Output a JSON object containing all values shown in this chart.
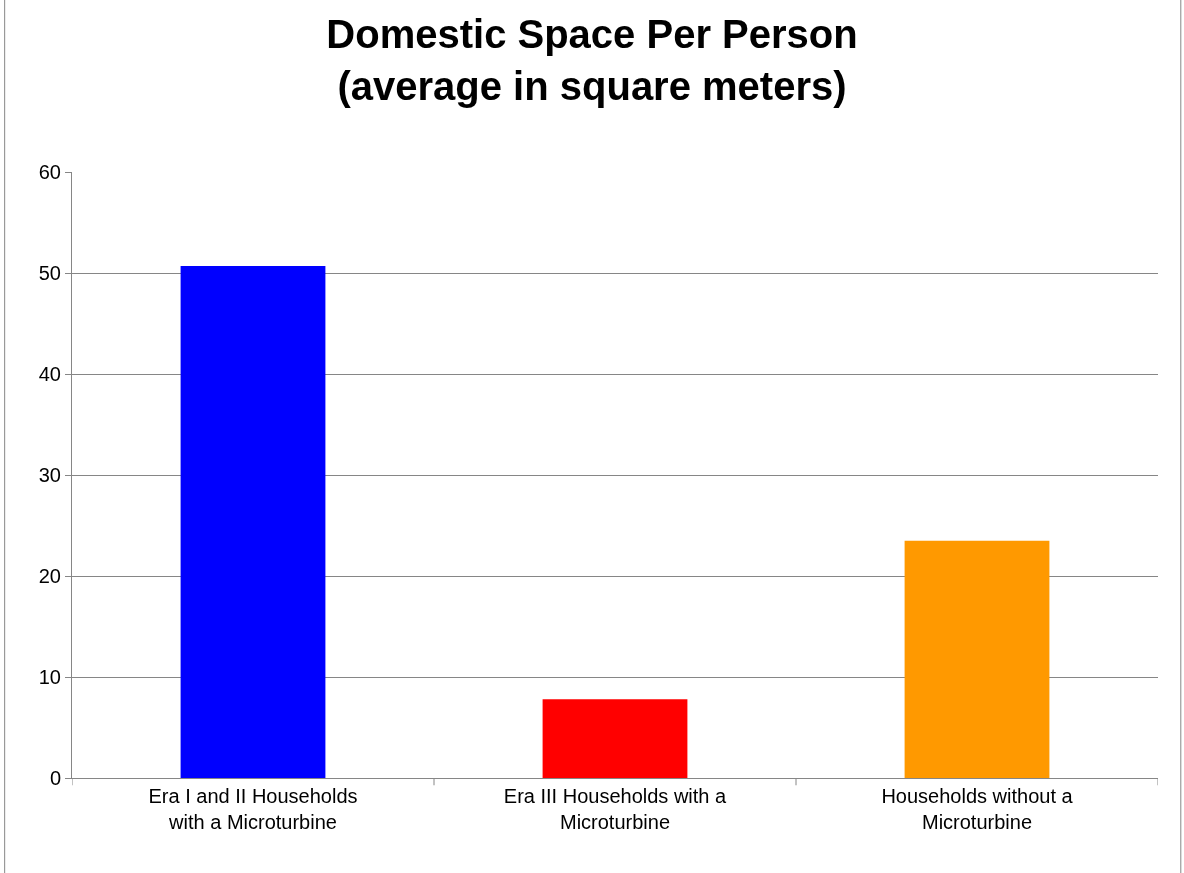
{
  "chart_data": {
    "type": "bar",
    "title": "Domestic Space Per Person\n(average in square meters)",
    "categories": [
      "Era I and II Households\nwith a Microturbine",
      "Era III Households with a\nMicroturbine",
      "Households without a\nMicroturbine"
    ],
    "values": [
      50.7,
      7.8,
      23.5
    ],
    "colors": [
      "#0000ff",
      "#ff0000",
      "#ff9900"
    ],
    "ylim": [
      0,
      60
    ],
    "yticks": [
      0,
      10,
      20,
      30,
      40,
      50,
      60
    ],
    "grid": "y"
  }
}
